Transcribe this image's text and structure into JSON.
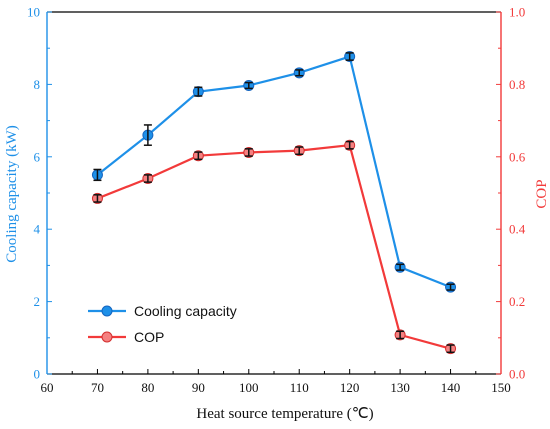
{
  "chart_data": {
    "type": "line",
    "xlabel": "Heat source temperature (℃)",
    "ylabel_left": "Cooling capacity (kW)",
    "ylabel_right": "COP",
    "xlim": [
      60,
      150
    ],
    "ylim_left": [
      0,
      10
    ],
    "ylim_right": [
      0.0,
      1.0
    ],
    "x_ticks": [
      60,
      70,
      80,
      90,
      100,
      110,
      120,
      130,
      140,
      150
    ],
    "y_left_ticks": [
      0,
      2,
      4,
      6,
      8,
      10
    ],
    "y_right_ticks": [
      "0.0",
      "0.2",
      "0.4",
      "0.6",
      "0.8",
      "1.0"
    ],
    "legend_position": "bottom-left",
    "grid": false,
    "x": [
      70,
      80,
      90,
      100,
      110,
      120,
      130,
      140
    ],
    "series": [
      {
        "name": "Cooling capacity",
        "axis": "left",
        "color": "#1e90e8",
        "values": [
          5.5,
          6.6,
          7.8,
          7.97,
          8.32,
          8.77,
          2.95,
          2.4
        ],
        "errors": [
          0.15,
          0.28,
          0.12,
          0.08,
          0.08,
          0.1,
          0.08,
          0.08
        ]
      },
      {
        "name": "COP",
        "axis": "right",
        "color": "#f23a3a",
        "values": [
          0.485,
          0.54,
          0.603,
          0.612,
          0.617,
          0.632,
          0.108,
          0.07
        ],
        "errors": [
          0.01,
          0.01,
          0.01,
          0.01,
          0.01,
          0.01,
          0.01,
          0.01
        ]
      }
    ],
    "colors": {
      "left_axis": "#1e90e8",
      "right_axis": "#f23a3a",
      "bottom_axis": "#000000"
    }
  }
}
